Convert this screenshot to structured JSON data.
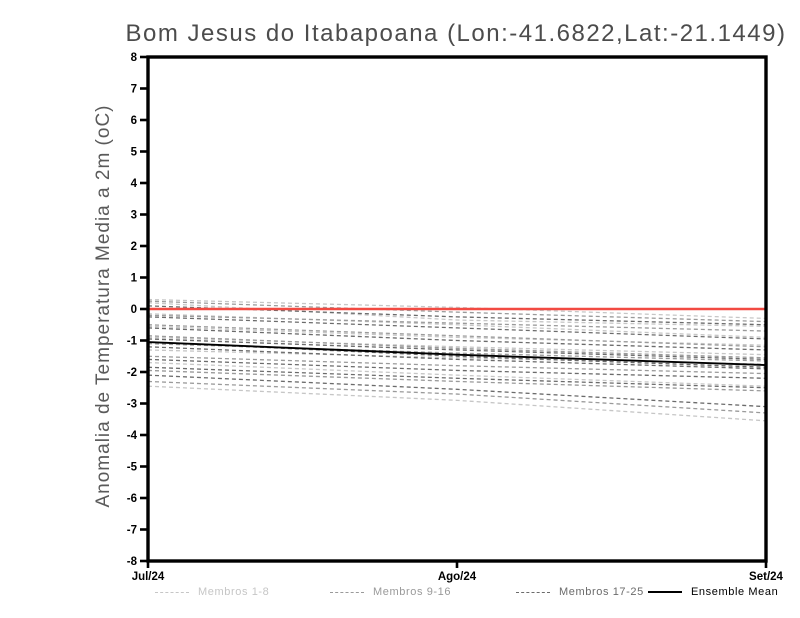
{
  "title": "Bom Jesus do Itabapoana (Lon:-41.6822,Lat:-21.1449)",
  "chart_data": {
    "type": "line",
    "title": "Bom Jesus do Itabapoana (Lon:-41.6822,Lat:-21.1449)",
    "xlabel": "",
    "ylabel": "Anomalia de Temperatura Media a 2m (oC)",
    "x": [
      "Jul/24",
      "Ago/24",
      "Set/24"
    ],
    "ylim": [
      -8,
      8
    ],
    "yticks": [
      8,
      7,
      6,
      5,
      4,
      3,
      2,
      1,
      0,
      -1,
      -2,
      -3,
      -4,
      -5,
      -6,
      -7,
      -8
    ],
    "grid": false,
    "legend_position": "bottom",
    "frame_color": "#000000",
    "groups": [
      {
        "id": "g1",
        "label": "Membros 1-8",
        "color": "#c6c6c6",
        "style": "dashed"
      },
      {
        "id": "g2",
        "label": "Membros 9-16",
        "color": "#9a9a9a",
        "style": "dashed"
      },
      {
        "id": "g3",
        "label": "Membros 17-25",
        "color": "#6b6b6b",
        "style": "dashed"
      },
      {
        "id": "mean",
        "label": "Ensemble Mean",
        "color": "#000000",
        "style": "solid"
      }
    ],
    "zero_line": {
      "color": "#f24a42",
      "values": [
        0,
        0,
        0
      ]
    },
    "ensemble_mean": {
      "group": "mean",
      "values": [
        -1.05,
        -1.45,
        -1.78
      ]
    },
    "series": [
      {
        "name": "m1",
        "group": "g1",
        "values": [
          0.3,
          0.05,
          -0.3
        ]
      },
      {
        "name": "m2",
        "group": "g1",
        "values": [
          0.2,
          -0.35,
          -0.55
        ]
      },
      {
        "name": "m3",
        "group": "g1",
        "values": [
          -0.15,
          -0.5,
          -0.9
        ]
      },
      {
        "name": "m4",
        "group": "g1",
        "values": [
          -0.55,
          -0.9,
          -1.15
        ]
      },
      {
        "name": "m5",
        "group": "g1",
        "values": [
          -0.9,
          -1.2,
          -1.45
        ]
      },
      {
        "name": "m6",
        "group": "g1",
        "values": [
          -1.3,
          -1.55,
          -1.75
        ]
      },
      {
        "name": "m7",
        "group": "g1",
        "values": [
          -1.7,
          -2.1,
          -2.45
        ]
      },
      {
        "name": "m8",
        "group": "g1",
        "values": [
          -2.45,
          -2.9,
          -3.55
        ]
      },
      {
        "name": "m9",
        "group": "g2",
        "values": [
          0.25,
          -0.1,
          -0.4
        ]
      },
      {
        "name": "m10",
        "group": "g2",
        "values": [
          -0.2,
          -0.45,
          -0.7
        ]
      },
      {
        "name": "m11",
        "group": "g2",
        "values": [
          -0.5,
          -0.85,
          -1.2
        ]
      },
      {
        "name": "m12",
        "group": "g2",
        "values": [
          -0.85,
          -1.25,
          -1.55
        ]
      },
      {
        "name": "m13",
        "group": "g2",
        "values": [
          -1.1,
          -1.4,
          -1.65
        ]
      },
      {
        "name": "m14",
        "group": "g2",
        "values": [
          -1.5,
          -1.8,
          -2.05
        ]
      },
      {
        "name": "m15",
        "group": "g2",
        "values": [
          -1.95,
          -2.3,
          -2.6
        ]
      },
      {
        "name": "m16",
        "group": "g2",
        "values": [
          -2.3,
          -2.7,
          -3.3
        ]
      },
      {
        "name": "m17",
        "group": "g3",
        "values": [
          0.1,
          -0.25,
          -0.5
        ]
      },
      {
        "name": "m18",
        "group": "g3",
        "values": [
          -0.25,
          -0.6,
          -0.95
        ]
      },
      {
        "name": "m19",
        "group": "g3",
        "values": [
          -0.6,
          -1.0,
          -1.3
        ]
      },
      {
        "name": "m20",
        "group": "g3",
        "values": [
          -0.95,
          -1.3,
          -1.6
        ]
      },
      {
        "name": "m21",
        "group": "g3",
        "values": [
          -1.05,
          -1.5,
          -1.85
        ]
      },
      {
        "name": "m22",
        "group": "g3",
        "values": [
          -1.2,
          -1.6,
          -1.9
        ]
      },
      {
        "name": "m23",
        "group": "g3",
        "values": [
          -1.6,
          -1.95,
          -2.2
        ]
      },
      {
        "name": "m24",
        "group": "g3",
        "values": [
          -1.85,
          -2.2,
          -2.5
        ]
      },
      {
        "name": "m25",
        "group": "g3",
        "values": [
          -2.1,
          -2.55,
          -3.1
        ]
      }
    ]
  }
}
